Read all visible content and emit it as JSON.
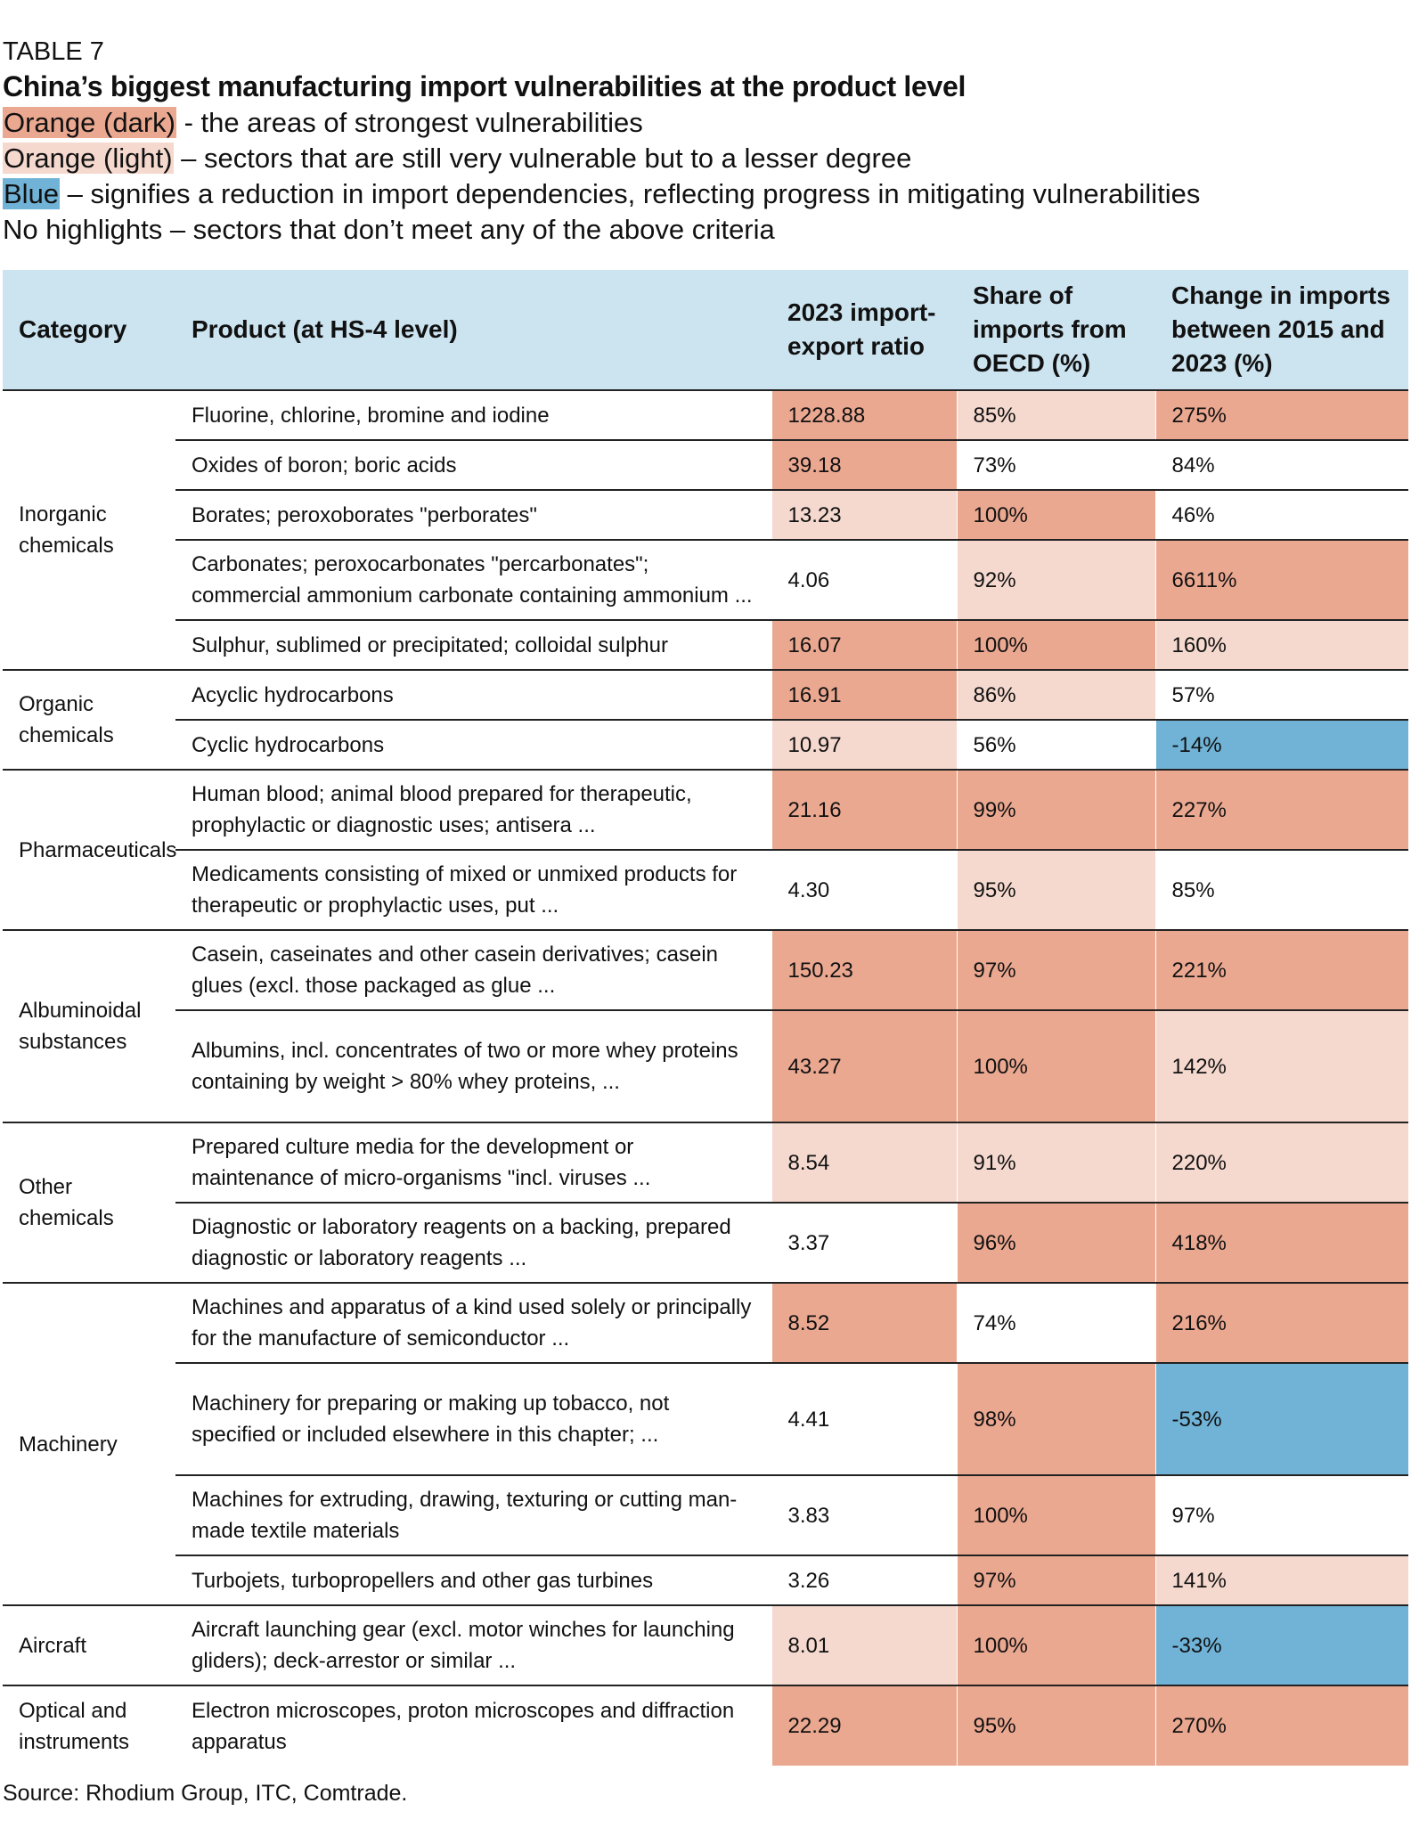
{
  "kicker": "TABLE 7",
  "title": "China’s biggest manufacturing import vulnerabilities at the product level",
  "legend": [
    {
      "swatch": "Orange (dark)",
      "text": " - the areas of strongest vulnerabilities",
      "color": "#eba891"
    },
    {
      "swatch": "Orange (light)",
      "text": " – sectors that are still very vulnerable but to a lesser degree",
      "color": "#f5d9cf"
    },
    {
      "swatch": "Blue",
      "text": " – signifies a reduction in import dependencies, reflecting progress in mitigating vulnerabilities",
      "color": "#70b3d7"
    },
    {
      "swatch": "",
      "text": "No highlights – sectors that don’t meet any of the above criteria",
      "color": ""
    }
  ],
  "columns": [
    "Category",
    "Product (at HS-4 level)",
    "2023 import-export ratio",
    "Share of imports from OECD (%)",
    "Change in imports between 2015 and 2023 (%)"
  ],
  "groups": [
    {
      "category": "Inorganic chemicals",
      "rows": [
        {
          "product": "Fluorine, chlorine, bromine and iodine",
          "ratio": "1228.88",
          "share": "85%",
          "change": "275%",
          "colors": [
            "d",
            "l",
            "d"
          ]
        },
        {
          "product": "Oxides of boron; boric acids",
          "ratio": "39.18",
          "share": "73%",
          "change": "84%",
          "colors": [
            "d",
            "n",
            "n"
          ]
        },
        {
          "product": "Borates; peroxoborates \"perborates\"",
          "ratio": "13.23",
          "share": "100%",
          "change": "46%",
          "colors": [
            "l",
            "d",
            "n"
          ]
        },
        {
          "product": "Carbonates; peroxocarbonates \"percarbonates\"; commercial ammonium carbonate containing ammonium ...",
          "ratio": "4.06",
          "share": "92%",
          "change": "6611%",
          "colors": [
            "n",
            "l",
            "d"
          ]
        },
        {
          "product": "Sulphur, sublimed or precipitated; colloidal sulphur",
          "ratio": "16.07",
          "share": "100%",
          "change": "160%",
          "colors": [
            "d",
            "d",
            "l"
          ]
        }
      ]
    },
    {
      "category": "Organic chemicals",
      "rows": [
        {
          "product": "Acyclic hydrocarbons",
          "ratio": "16.91",
          "share": "86%",
          "change": "57%",
          "colors": [
            "d",
            "l",
            "n"
          ]
        },
        {
          "product": "Cyclic hydrocarbons",
          "ratio": "10.97",
          "share": "56%",
          "change": "-14%",
          "colors": [
            "l",
            "n",
            "b"
          ]
        }
      ]
    },
    {
      "category": "Pharmaceuticals",
      "rows": [
        {
          "product": "Human blood; animal blood prepared for therapeutic, prophylactic or diagnostic uses; antisera ...",
          "ratio": "21.16",
          "share": "99%",
          "change": "227%",
          "colors": [
            "d",
            "d",
            "d"
          ]
        },
        {
          "product": "Medicaments consisting of mixed or unmixed products for therapeutic or prophylactic uses, put ...",
          "ratio": "4.30",
          "share": "95%",
          "change": "85%",
          "colors": [
            "n",
            "l",
            "n"
          ]
        }
      ]
    },
    {
      "category": "Albuminoidal substances",
      "rows": [
        {
          "product": "Casein, caseinates and other casein derivatives; casein glues (excl. those packaged as glue ...",
          "ratio": "150.23",
          "share": "97%",
          "change": "221%",
          "colors": [
            "d",
            "d",
            "d"
          ]
        },
        {
          "product": "Albumins, incl. concentrates of two or more whey proteins containing by weight > 80% whey proteins, ...",
          "ratio": "43.27",
          "share": "100%",
          "change": "142%",
          "colors": [
            "d",
            "d",
            "l"
          ]
        }
      ]
    },
    {
      "category": "Other chemicals",
      "rows": [
        {
          "product": "Prepared culture media for the development or maintenance of micro-organisms \"incl. viruses ...",
          "ratio": "8.54",
          "share": "91%",
          "change": "220%",
          "colors": [
            "l",
            "l",
            "l"
          ]
        },
        {
          "product": "Diagnostic or laboratory reagents on a backing, prepared diagnostic or laboratory reagents ...",
          "ratio": "3.37",
          "share": "96%",
          "change": "418%",
          "colors": [
            "n",
            "d",
            "d"
          ]
        }
      ]
    },
    {
      "category": "Machinery",
      "rows": [
        {
          "product": "Machines and apparatus of a kind used solely or principally for the manufacture of semiconductor ...",
          "ratio": "8.52",
          "share": "74%",
          "change": "216%",
          "colors": [
            "d",
            "n",
            "d"
          ]
        },
        {
          "product": "Machinery for preparing or making up tobacco, not specified or included elsewhere in this chapter; ...",
          "ratio": "4.41",
          "share": "98%",
          "change": "-53%",
          "colors": [
            "n",
            "d",
            "b"
          ]
        },
        {
          "product": "Machines for extruding, drawing, texturing or cutting man-made textile materials",
          "ratio": "3.83",
          "share": "100%",
          "change": "97%",
          "colors": [
            "n",
            "d",
            "n"
          ]
        },
        {
          "product": "Turbojets, turbopropellers and other gas turbines",
          "ratio": "3.26",
          "share": "97%",
          "change": "141%",
          "colors": [
            "n",
            "d",
            "l"
          ]
        }
      ]
    },
    {
      "category": "Aircraft",
      "rows": [
        {
          "product": "Aircraft launching gear (excl. motor winches for launching gliders); deck-arrestor or similar ...",
          "ratio": "8.01",
          "share": "100%",
          "change": "-33%",
          "colors": [
            "l",
            "d",
            "b"
          ]
        }
      ]
    },
    {
      "category": "Optical and instruments",
      "rows": [
        {
          "product": "Electron microscopes, proton microscopes and diffraction apparatus",
          "ratio": "22.29",
          "share": "95%",
          "change": "270%",
          "colors": [
            "d",
            "d",
            "d"
          ]
        }
      ]
    }
  ],
  "source": "Source: Rhodium Group, ITC, Comtrade."
}
